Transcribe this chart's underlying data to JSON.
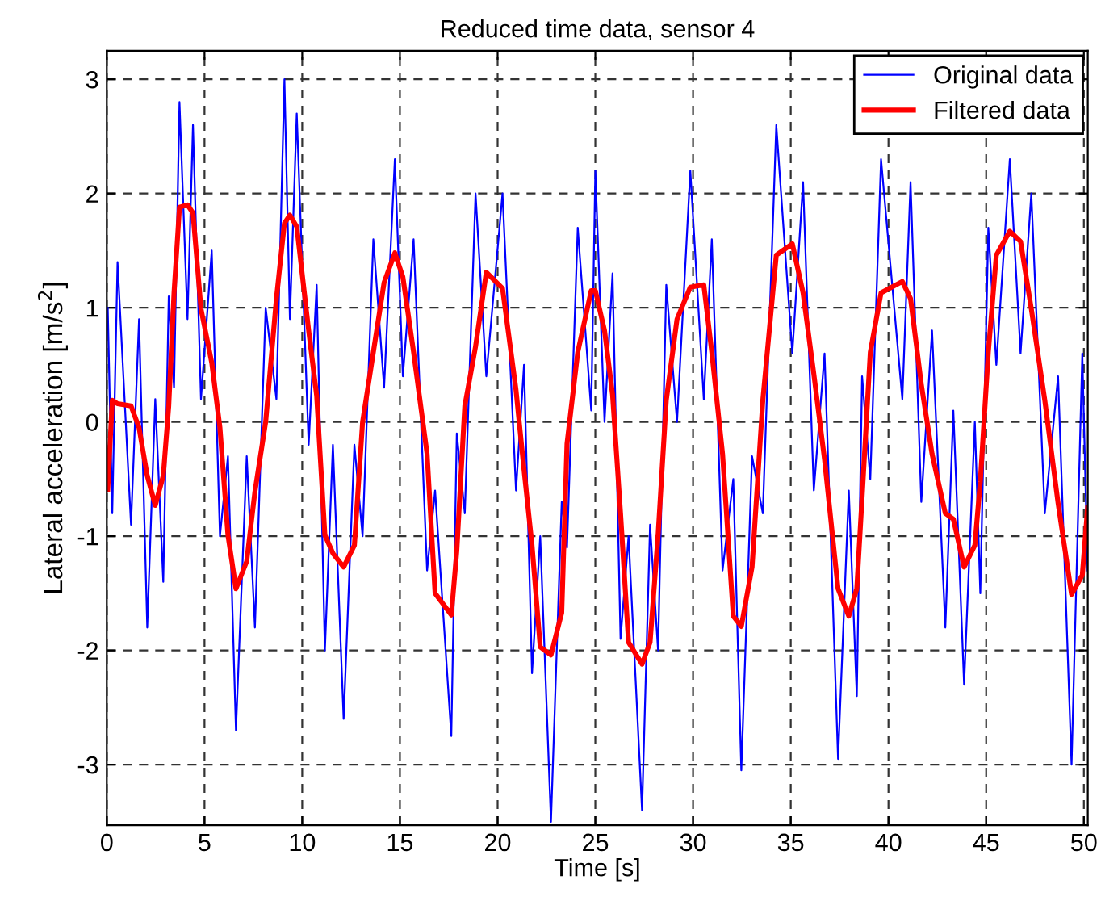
{
  "chart_data": {
    "type": "line",
    "title": "Reduced time data, sensor 4",
    "xlabel": "Time [s]",
    "ylabel": "Lateral acceleration [m/s$^{2}$]",
    "xlim": [
      0,
      50.2
    ],
    "ylim": [
      -3.53,
      3.25
    ],
    "xticks": [
      0,
      5,
      10,
      15,
      20,
      25,
      30,
      35,
      40,
      45,
      50
    ],
    "yticks": [
      -3,
      -2,
      -1,
      0,
      1,
      2,
      3
    ],
    "grid": true,
    "legend": "top right",
    "marker": "none",
    "series": [
      {
        "name": "Original data",
        "color": "#0000ff",
        "line_style": "solid",
        "x": [
          0.05,
          0.28,
          0.55,
          1.24,
          1.65,
          2.07,
          2.48,
          2.89,
          3.17,
          3.44,
          3.72,
          4.13,
          4.41,
          4.82,
          5.37,
          5.79,
          6.2,
          6.61,
          7.16,
          7.58,
          8.13,
          8.68,
          9.09,
          9.37,
          9.72,
          10.33,
          10.74,
          11.16,
          11.57,
          12.12,
          12.67,
          13.09,
          13.64,
          14.19,
          14.74,
          15.15,
          15.7,
          16.39,
          16.8,
          17.63,
          17.91,
          18.32,
          18.87,
          19.42,
          20.25,
          20.94,
          21.35,
          21.76,
          22.18,
          22.73,
          23.28,
          23.55,
          24.1,
          24.79,
          25.0,
          25.47,
          25.88,
          26.29,
          26.7,
          27.39,
          27.8,
          28.21,
          28.63,
          29.18,
          29.86,
          30.55,
          30.96,
          31.51,
          32.06,
          32.47,
          33.02,
          33.57,
          34.26,
          35.08,
          35.63,
          36.18,
          36.73,
          37.42,
          37.97,
          38.38,
          38.65,
          39.07,
          39.62,
          40.71,
          41.13,
          41.68,
          42.23,
          42.91,
          43.32,
          43.87,
          44.42,
          44.7,
          45.11,
          45.52,
          46.21,
          46.76,
          47.31,
          48.0,
          48.68,
          49.37,
          49.92,
          50.19
        ],
        "values": [
          1.0,
          -0.8,
          1.4,
          -0.9,
          0.9,
          -1.8,
          0.2,
          -1.4,
          1.1,
          0.3,
          2.8,
          0.9,
          2.6,
          0.2,
          1.5,
          -1.0,
          -0.3,
          -2.7,
          -0.3,
          -1.8,
          1.0,
          0.2,
          3.0,
          0.9,
          2.7,
          -0.2,
          1.2,
          -2.0,
          -0.2,
          -2.6,
          -0.2,
          -1.0,
          1.6,
          0.3,
          2.3,
          0.4,
          1.6,
          -1.3,
          -0.6,
          -2.75,
          -0.1,
          -0.8,
          2.0,
          0.4,
          2.0,
          -0.6,
          0.5,
          -2.2,
          -1.0,
          -3.5,
          -0.7,
          -1.1,
          1.7,
          0.1,
          2.2,
          0.0,
          1.3,
          -1.9,
          -1.0,
          -3.4,
          -0.9,
          -2.0,
          1.2,
          0.0,
          2.2,
          0.2,
          1.6,
          -1.3,
          -0.5,
          -3.05,
          -0.3,
          -0.8,
          2.6,
          0.6,
          2.1,
          -0.6,
          0.6,
          -2.95,
          -0.6,
          -2.4,
          0.4,
          -0.5,
          2.3,
          0.2,
          2.1,
          -0.7,
          0.8,
          -1.8,
          0.1,
          -2.3,
          0.0,
          -1.5,
          1.7,
          0.5,
          2.3,
          0.6,
          2.0,
          -0.8,
          0.4,
          -3.0,
          0.6,
          -1.3
        ]
      },
      {
        "name": "Filtered data",
        "color": "#ff0000",
        "line_style": "solid",
        "x": [
          0.05,
          0.28,
          0.55,
          1.24,
          1.65,
          2.07,
          2.48,
          2.89,
          3.17,
          3.44,
          3.72,
          4.13,
          4.41,
          4.82,
          5.37,
          5.79,
          6.2,
          6.61,
          7.16,
          7.58,
          8.13,
          8.68,
          9.09,
          9.37,
          9.72,
          10.33,
          10.74,
          11.16,
          11.57,
          12.12,
          12.67,
          13.09,
          13.64,
          14.19,
          14.74,
          15.15,
          15.7,
          16.39,
          16.8,
          17.63,
          17.91,
          18.32,
          18.87,
          19.42,
          20.25,
          20.94,
          21.35,
          21.76,
          22.18,
          22.73,
          23.28,
          23.55,
          24.1,
          24.79,
          25.0,
          25.47,
          25.88,
          26.29,
          26.7,
          27.39,
          27.8,
          28.21,
          28.63,
          29.18,
          29.86,
          30.55,
          30.96,
          31.51,
          32.06,
          32.47,
          33.02,
          33.57,
          34.26,
          35.08,
          35.63,
          36.18,
          36.73,
          37.42,
          37.97,
          38.38,
          38.65,
          39.07,
          39.62,
          40.71,
          41.13,
          41.68,
          42.23,
          42.91,
          43.32,
          43.87,
          44.42,
          44.7,
          45.11,
          45.52,
          46.21,
          46.76,
          47.31,
          48.0,
          48.68,
          49.37,
          49.92,
          50.19
        ],
        "values": [
          -0.59,
          0.19,
          0.16,
          0.14,
          -0.05,
          -0.47,
          -0.73,
          -0.47,
          0.14,
          1.13,
          1.88,
          1.9,
          1.83,
          0.99,
          0.52,
          -0.05,
          -0.99,
          -1.46,
          -1.22,
          -0.61,
          0,
          1.08,
          1.74,
          1.81,
          1.71,
          0.8,
          0.23,
          -0.99,
          -1.15,
          -1.27,
          -1.08,
          0,
          0.61,
          1.22,
          1.48,
          1.27,
          0.61,
          -0.28,
          -1.5,
          -1.69,
          -1.13,
          0.14,
          0.66,
          1.31,
          1.17,
          0.28,
          -0.42,
          -1.08,
          -1.97,
          -2.04,
          -1.67,
          -0.19,
          0.61,
          1.15,
          1.15,
          0.8,
          0.24,
          -0.8,
          -1.93,
          -2.12,
          -1.93,
          -0.99,
          0.19,
          0.9,
          1.18,
          1.2,
          0.61,
          -0.28,
          -1.7,
          -1.79,
          -1.27,
          0.19,
          1.46,
          1.56,
          1.13,
          0.42,
          -0.33,
          -1.46,
          -1.7,
          -1.46,
          -0.66,
          0.61,
          1.13,
          1.23,
          1.08,
          0.33,
          -0.28,
          -0.8,
          -0.85,
          -1.27,
          -1.08,
          -0.52,
          0.61,
          1.46,
          1.67,
          1.58,
          0.99,
          0.19,
          -0.71,
          -1.51,
          -1.34,
          -0.75
        ]
      }
    ]
  }
}
